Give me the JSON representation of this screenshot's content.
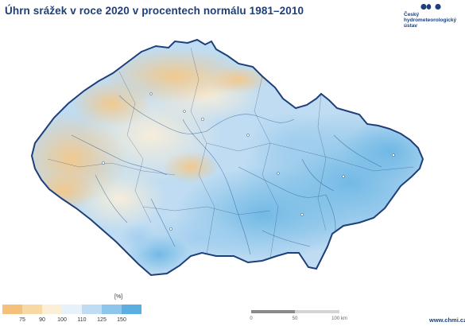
{
  "title": "Úhrn srážek v roce 2020 v procentech normálu 1981–2010",
  "logo": {
    "line1": "Český",
    "line2": "hydrometeorologický",
    "line3": "ústav"
  },
  "legend": {
    "unit": "[%]",
    "ticks": [
      "75",
      "90",
      "100",
      "110",
      "125",
      "150"
    ],
    "colors": [
      "#f5c07a",
      "#f8d9a3",
      "#fcefd8",
      "#e6f1fa",
      "#bfdcf2",
      "#8ec5ea",
      "#5aaee1"
    ]
  },
  "scale": {
    "labels": [
      "0",
      "50",
      "100 km"
    ]
  },
  "website": "www.chmi.cz",
  "colors": {
    "title": "#1d3f7a",
    "border": "#1d3f7a",
    "dry": "#f3c88a",
    "normal": "#fcefd8",
    "wet": "#9fcdee",
    "very_wet": "#6ab6e4"
  }
}
